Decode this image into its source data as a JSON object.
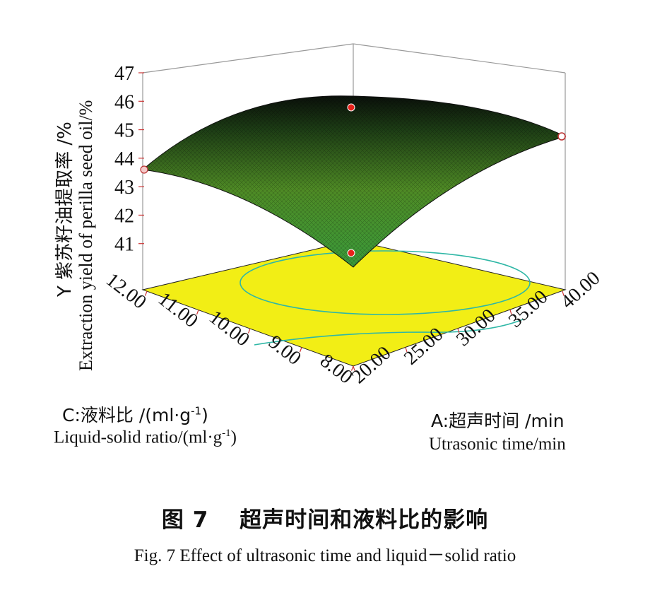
{
  "chart_data": {
    "type": "surface3d",
    "z_axis": {
      "label_cn": "Y 紫苏籽油提取率 /%",
      "label_en": "Extraction yield of perilla seed oil/%",
      "ticks": [
        "41",
        "42",
        "43",
        "44",
        "45",
        "46",
        "47"
      ],
      "range": [
        40,
        47
      ]
    },
    "x_axis": {
      "name": "A",
      "label_cn": "A:超声时间 /min",
      "label_en": "Utrasonic time/min",
      "ticks": [
        "20.00",
        "25.00",
        "30.00",
        "35.00",
        "40.00"
      ],
      "range": [
        20,
        40
      ]
    },
    "y_axis": {
      "name": "C",
      "label_cn": "C:液料比 /(ml·g⁻¹)",
      "label_en": "Liquid-solid ratio/(ml·g⁻¹)",
      "ticks": [
        "8.00",
        "9.00",
        "10.00",
        "11.00",
        "12.00"
      ],
      "range": [
        8,
        12
      ]
    },
    "surface": {
      "description_points": [
        {
          "A": 20,
          "C": 8,
          "Y": 40.5
        },
        {
          "A": 40,
          "C": 8,
          "Y": 44.8
        },
        {
          "A": 20,
          "C": 12,
          "Y": 43.6
        },
        {
          "A": 40,
          "C": 12,
          "Y": 45.9
        },
        {
          "A": 31,
          "C": 10.4,
          "Y": 46.2
        }
      ]
    },
    "design_points": [
      {
        "A": 30,
        "C": 10,
        "Y": 45.8
      },
      {
        "A": 20,
        "C": 8,
        "Y": 40.5
      },
      {
        "A": 20,
        "C": 12,
        "Y": 43.6
      },
      {
        "A": 40,
        "C": 8,
        "Y": 44.7
      }
    ],
    "colors": {
      "floor": "#f2ee15",
      "contour": "#2fb7a6",
      "surface_low": "#2e8b2e",
      "surface_high": "#0f1a0f",
      "point": "#e8221b"
    }
  },
  "caption": {
    "cn": "图 7　 超声时间和液料比的影响",
    "en": "Fig. 7 Effect of ultrasonic time and liquid－solid ratio"
  }
}
